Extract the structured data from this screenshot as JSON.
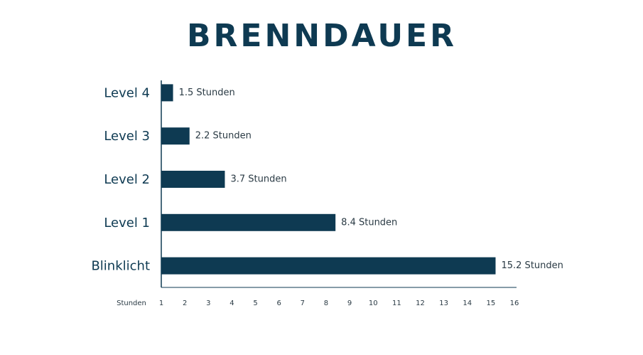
{
  "chart_data": {
    "type": "bar",
    "orientation": "horizontal",
    "title": "BRENNDAUER",
    "x_label": "Stunden",
    "categories": [
      "Level 4",
      "Level 3",
      "Level 2",
      "Level 1",
      "Blinklicht"
    ],
    "values": [
      1.5,
      2.2,
      3.7,
      8.4,
      15.2
    ],
    "value_labels": [
      "1.5 Stunden",
      "2.2 Stunden",
      "3.7 Stunden",
      "8.4 Stunden",
      "15.2 Stunden"
    ],
    "color": "#0e3a52",
    "xlim": [
      1,
      16
    ],
    "xticks": [
      1,
      2,
      3,
      4,
      5,
      6,
      7,
      8,
      9,
      10,
      11,
      12,
      13,
      14,
      15,
      16
    ],
    "grid": false
  }
}
